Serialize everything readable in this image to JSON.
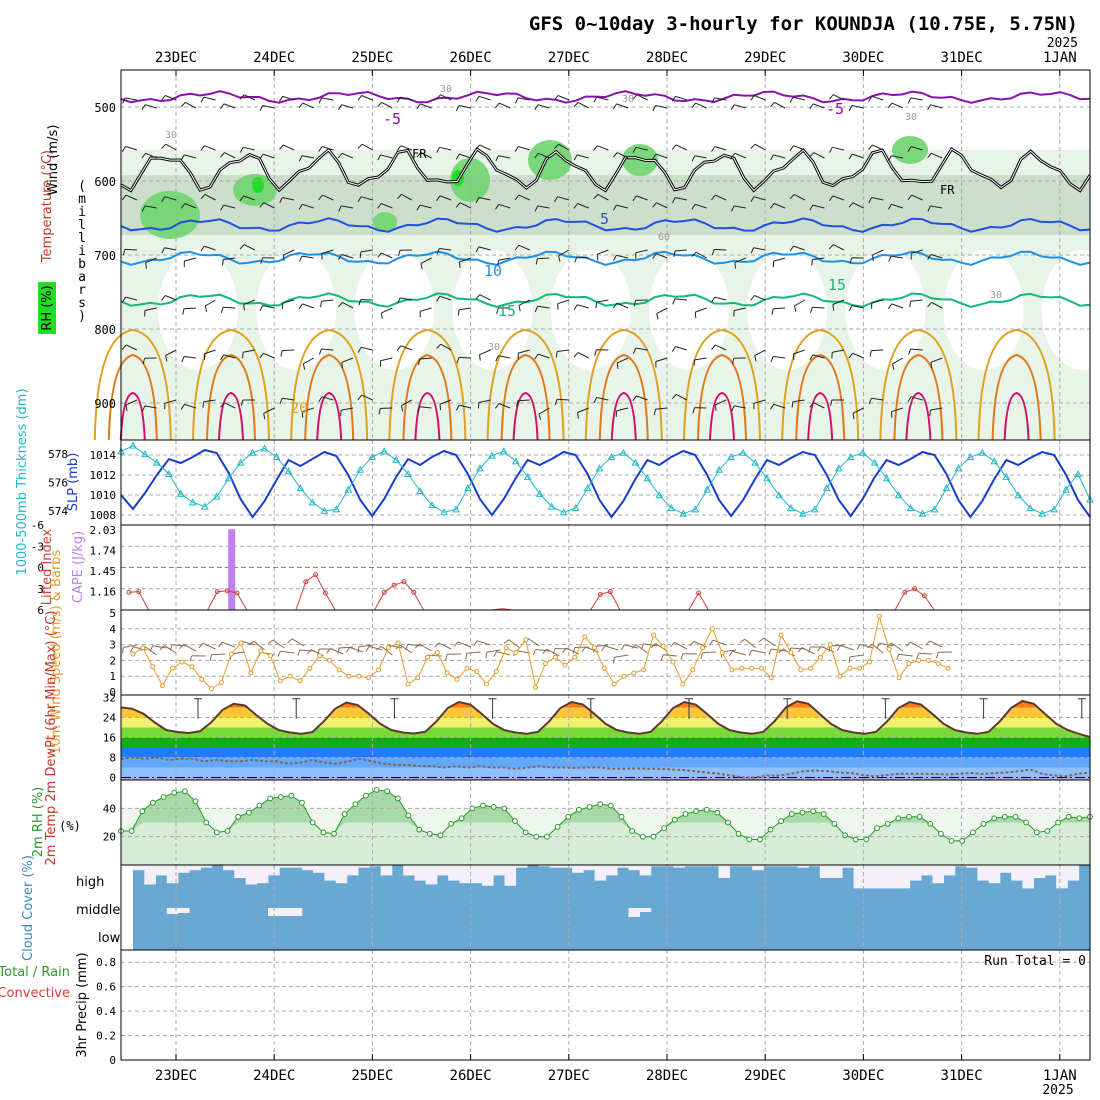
{
  "title": "GFS 0~10day 3-hourly for KOUNDJA (10.75E, 5.75N)",
  "year_label": "2025",
  "colors": {
    "grid": "#aaaaaa",
    "rh_light": "#e8f4e8",
    "rh_mid": "#c9dcc9",
    "rh_green": "#6fd46f",
    "rh_bright": "#22dd22",
    "t_minus5": "#8a10b0",
    "t_5": "#2050e0",
    "t_10": "#1e90e8",
    "t_15": "#10b87a",
    "t_20": "#e0a020",
    "t_25": "#e07818",
    "t_30": "#d0106e",
    "slp": "#1a3ccc",
    "thickness": "#22b8c8",
    "lifted": "#d04040",
    "cape": "#c080f0",
    "wind10": "#e89a2a",
    "barb": "#8a6a4a",
    "dewpt": "#7a6a5a",
    "rh2m": "#2a9a2a",
    "cloud": "#6aa8d4",
    "precip_total": "#2a9a2a",
    "precip_conv": "#e03a3a"
  },
  "chart_data": [
    {
      "id": "upper-air",
      "type": "heatmap",
      "x_ticks": [
        "23DEC",
        "24DEC",
        "25DEC",
        "26DEC",
        "27DEC",
        "28DEC",
        "29DEC",
        "30DEC",
        "31DEC",
        "1JAN"
      ],
      "ylabel": "(millibars)",
      "ylabel_chars": [
        "(",
        "m",
        "i",
        "l",
        "l",
        "i",
        "b",
        "a",
        "r",
        "s",
        ")"
      ],
      "y_ticks": [
        "500",
        "600",
        "700",
        "800",
        "900"
      ],
      "ylim": [
        450,
        950
      ],
      "side_labels": {
        "wind": "Wind (m/s)",
        "temperature": "Temperature (°C)",
        "rh": "RH (%)"
      },
      "contour_labels": {
        "minus5": "-5",
        "fr": "FR",
        "five": "5",
        "ten": "10",
        "fifteen": "15",
        "twenty": "20",
        "thirty": "30",
        "sixty": "60"
      }
    },
    {
      "id": "slp-thickness",
      "type": "line",
      "ylabel_left": "1000-500mb Thickness (dm)",
      "ylabel_right": "SLP (mb)",
      "y_ticks_left": [
        "578",
        "576",
        "574"
      ],
      "y_ticks_right": [
        "1014",
        "1012",
        "1010",
        "1008"
      ],
      "ylim_slp": [
        1007,
        1015.5
      ],
      "ylim_thickness": [
        573,
        579
      ],
      "series": [
        {
          "name": "SLP (mb)",
          "values": [
            1010,
            1008.6,
            1010.2,
            1012,
            1013.6,
            1013.2,
            1013.8,
            1014.5,
            1014.2,
            1012.2,
            1009.6,
            1007.8,
            1009.4,
            1011.5,
            1013.5,
            1012.9,
            1013.6,
            1014.3,
            1013.9,
            1012.0,
            1009.5,
            1007.9,
            1009.6,
            1011.8,
            1013.6,
            1013.0,
            1013.8,
            1014.4,
            1014.0,
            1012.1,
            1009.6,
            1008.0,
            1009.6,
            1011.7,
            1013.5,
            1013.0,
            1013.6,
            1014.3,
            1014.0,
            1012.1,
            1009.5,
            1007.8,
            1009.4,
            1011.6,
            1013.5,
            1013.0,
            1013.8,
            1014.4,
            1014.0,
            1012.0,
            1009.5,
            1007.9,
            1009.5,
            1011.6,
            1013.5,
            1013.0,
            1013.7,
            1014.3,
            1014.0,
            1012.0,
            1009.5,
            1007.9,
            1009.6,
            1011.8,
            1013.5,
            1013.0,
            1013.6,
            1014.3,
            1014.0,
            1012.1,
            1009.5,
            1007.8,
            1009.4,
            1011.6,
            1013.5,
            1013.0,
            1013.7,
            1014.3,
            1014.0,
            1012.0,
            1009.5,
            1007.8
          ]
        },
        {
          "name": "1000-500mb Thickness (dm)",
          "values": [
            578.2,
            578.6,
            578.0,
            577.4,
            576.6,
            575.2,
            574.6,
            574.3,
            575.0,
            576.3,
            577.4,
            578.1,
            578.4,
            577.8,
            576.8,
            575.6,
            574.6,
            574.0,
            574.1,
            575.5,
            576.9,
            577.8,
            578.2,
            577.6,
            576.6,
            575.4,
            574.4,
            573.9,
            574.1,
            575.6,
            577.0,
            577.9,
            578.2,
            577.5,
            576.4,
            575.2,
            574.3,
            573.9,
            574.2,
            575.6,
            577.0,
            577.8,
            578.1,
            577.4,
            576.3,
            575.1,
            574.2,
            573.8,
            574.1,
            575.5,
            576.9,
            577.8,
            578.1,
            577.4,
            576.3,
            575.1,
            574.2,
            573.8,
            574.1,
            575.6,
            577.0,
            577.8,
            578.1,
            577.4,
            576.3,
            575.1,
            574.2,
            573.8,
            574.1,
            575.6,
            577.0,
            577.8,
            578.1,
            577.5,
            576.4,
            575.1,
            574.2,
            573.8,
            574.1,
            575.5,
            576.6,
            574.8
          ]
        }
      ]
    },
    {
      "id": "lifted-cape",
      "type": "line",
      "ylabel_left": "Lifted Index",
      "ylabel_right": "CAPE (J/kg)",
      "y_ticks_left": [
        "-6",
        "-3",
        "0",
        "3",
        "6"
      ],
      "y_ticks_right": [
        "2.03",
        "1.74",
        "1.45",
        "1.16"
      ],
      "ylim_lifted": [
        6,
        -6
      ],
      "series": [
        {
          "name": "Lifted Index",
          "points": [
            [
              0,
              3.5
            ],
            [
              1,
              3.4
            ],
            [
              2,
              6.5
            ],
            [
              8,
              6.5
            ],
            [
              9,
              3.4
            ],
            [
              10,
              3.3
            ],
            [
              11,
              3.6
            ],
            [
              12,
              6.5
            ],
            [
              17,
              6.5
            ],
            [
              18,
              2.0
            ],
            [
              19,
              1.0
            ],
            [
              20,
              3.6
            ],
            [
              21,
              6.5
            ],
            [
              25,
              6.5
            ],
            [
              26,
              3.5
            ],
            [
              27,
              2.5
            ],
            [
              28,
              2.0
            ],
            [
              29,
              3.5
            ],
            [
              30,
              6.5
            ],
            [
              37,
              6.5
            ],
            [
              38,
              5.8
            ],
            [
              39,
              6.5
            ],
            [
              47,
              6.5
            ],
            [
              48,
              3.8
            ],
            [
              49,
              3.4
            ],
            [
              50,
              6.5
            ],
            [
              57,
              6.5
            ],
            [
              58,
              3.6
            ],
            [
              59,
              6.0
            ],
            [
              66,
              6.5
            ],
            [
              67,
              6.0
            ],
            [
              78,
              6.5
            ],
            [
              79,
              3.5
            ],
            [
              80,
              3.0
            ],
            [
              81,
              4.0
            ],
            [
              82,
              6.5
            ]
          ]
        },
        {
          "name": "CAPE (J/kg)",
          "bars": [
            [
              10,
              2.03
            ]
          ]
        }
      ]
    },
    {
      "id": "wind10m",
      "type": "line",
      "ylabel": "10m Wind Speed (m/s) & Barbs",
      "y_ticks": [
        "5",
        "4",
        "3",
        "2",
        "1",
        "0"
      ],
      "ylim": [
        0,
        5
      ],
      "series": [
        {
          "name": "10m Wind Speed",
          "values": [
            2.4,
            2.8,
            1.6,
            0.4,
            1.5,
            1.9,
            1.6,
            0.8,
            0.2,
            0.6,
            2.4,
            3.1,
            1.2,
            2.6,
            2.3,
            0.7,
            1.0,
            0.7,
            1.5,
            2.3,
            2.0,
            1.4,
            1.0,
            1.0,
            0.9,
            1.4,
            2.8,
            3.1,
            0.5,
            0.9,
            2.2,
            2.5,
            1.2,
            0.8,
            1.5,
            1.3,
            0.5,
            1.3,
            2.8,
            2.5,
            3.3,
            0.3,
            1.8,
            2.2,
            1.7,
            2.2,
            3.5,
            2.8,
            1.5,
            0.5,
            1.0,
            1.2,
            1.4,
            3.6,
            2.9,
            1.9,
            0.5,
            1.4,
            2.8,
            4.0,
            2.5,
            1.4,
            1.5,
            1.5,
            1.5,
            0.9,
            3.6,
            2.5,
            1.4,
            1.5,
            2.2,
            3.0,
            1.0,
            1.5,
            1.5,
            1.9,
            4.8,
            2.7,
            0.9,
            1.8,
            2.0,
            2.0,
            1.8,
            1.5
          ]
        }
      ]
    },
    {
      "id": "temp2m",
      "type": "area",
      "ylabel": "2m Temp 2m DewPt (6hr Min/Max) (°C)",
      "y_ticks": [
        "32",
        "24",
        "16",
        "8",
        "0"
      ],
      "ylim": [
        -1,
        33
      ],
      "series": [
        {
          "name": "2m Temp",
          "values": [
            28.0,
            27.5,
            25.5,
            22.0,
            19.0,
            18.2,
            17.8,
            18.5,
            22.0,
            27.0,
            29.5,
            28.8,
            25.0,
            21.5,
            19.0,
            18.0,
            17.5,
            18.2,
            22.5,
            27.5,
            30.0,
            29.0,
            25.5,
            21.5,
            19.0,
            18.0,
            17.6,
            18.3,
            22.5,
            27.8,
            30.2,
            29.2,
            25.5,
            21.5,
            19.0,
            18.0,
            17.5,
            18.3,
            22.5,
            27.8,
            30.2,
            29.2,
            25.5,
            21.5,
            19.0,
            18.0,
            17.5,
            18.3,
            22.5,
            27.8,
            30.2,
            29.2,
            25.5,
            21.5,
            19.0,
            18.0,
            17.5,
            18.3,
            22.5,
            28.0,
            30.5,
            29.5,
            25.5,
            21.5,
            19.0,
            18.0,
            17.5,
            18.3,
            22.5,
            27.8,
            30.2,
            29.2,
            25.5,
            21.5,
            19.0,
            18.0,
            17.5,
            18.3,
            22.5,
            27.8,
            30.6,
            29.5,
            25.5,
            21.5,
            19.0,
            17.5,
            16.2
          ]
        },
        {
          "name": "2m DewPt",
          "values": [
            7.5,
            8.0,
            7.5,
            8.0,
            7.0,
            7.5,
            7.5,
            6.5,
            7.0,
            6.5,
            6.5,
            7.0,
            6.5,
            6.5,
            5.5,
            6.0,
            7.0,
            6.0,
            5.5,
            6.5,
            7.5,
            6.5,
            5.5,
            5.0,
            5.0,
            4.5,
            4.5,
            4.0,
            4.5,
            4.0,
            4.5,
            4.0,
            4.0,
            3.5,
            4.0,
            4.5,
            4.0,
            4.0,
            3.8,
            4.0,
            4.0,
            3.5,
            3.5,
            3.6,
            3.5,
            3.5,
            3.2,
            3.0,
            2.5,
            2.0,
            1.5,
            0.8,
            0.0,
            0.0,
            0.8,
            0.8,
            1.5,
            2.5,
            2.8,
            2.6,
            2.0,
            1.8,
            1.0,
            0.5,
            1.0,
            1.5,
            1.5,
            1.5,
            1.4,
            1.2,
            1.5,
            1.8,
            1.4,
            1.8,
            2.0,
            2.5,
            3.2,
            1.5,
            0.8,
            0.5,
            1.5,
            2.0
          ]
        }
      ]
    },
    {
      "id": "rh2m",
      "type": "area",
      "ylabel": "2m RH (%)",
      "y_ticks": [
        "40",
        "20"
      ],
      "ylim": [
        0,
        60
      ],
      "series": [
        {
          "name": "2m RH",
          "values": [
            24,
            24,
            38,
            44,
            48,
            51,
            52,
            45,
            30,
            23,
            24,
            34,
            37,
            42,
            47,
            48,
            49,
            44,
            30,
            23,
            22,
            36,
            43,
            49,
            53,
            52,
            47,
            35,
            25,
            22,
            21,
            29,
            33,
            40,
            42,
            41,
            40,
            31,
            23,
            20,
            20,
            27,
            34,
            39,
            41,
            43,
            42,
            34,
            24,
            20,
            20,
            26,
            32,
            36,
            38,
            39,
            37,
            30,
            22,
            18,
            18,
            25,
            31,
            36,
            37,
            38,
            36,
            29,
            21,
            18,
            18,
            26,
            29,
            33,
            34,
            34,
            29,
            22,
            17,
            17,
            23,
            29,
            33,
            34,
            34,
            30,
            23,
            24,
            30,
            34,
            33,
            34
          ]
        }
      ]
    },
    {
      "id": "cloud",
      "type": "bar",
      "ylabel": "Cloud Cover (%)",
      "levels": [
        "high",
        "middle",
        "low"
      ],
      "series": [
        {
          "name": "high",
          "values": [
            80,
            25,
            60,
            30,
            70,
            80,
            90,
            100,
            80,
            50,
            25,
            30,
            60,
            90,
            90,
            80,
            70,
            40,
            30,
            60,
            90,
            95,
            60,
            100,
            60,
            40,
            25,
            60,
            40,
            30,
            30,
            20,
            60,
            20,
            90,
            100,
            95,
            90,
            90,
            70,
            80,
            40,
            60,
            90,
            80,
            60,
            95,
            95,
            90,
            95,
            95,
            95,
            50,
            95,
            95,
            80,
            95,
            95,
            95,
            90,
            95,
            50,
            50,
            90,
            10,
            10,
            10,
            10,
            10,
            40,
            60,
            30,
            60,
            95,
            90,
            40,
            30,
            70,
            40,
            10,
            50,
            60,
            10,
            40,
            100
          ]
        },
        {
          "name": "middle",
          "values": [
            0,
            0,
            0,
            30,
            25,
            0,
            0,
            0,
            0,
            0,
            0,
            0,
            40,
            40,
            40,
            0,
            0,
            0,
            0,
            0,
            0,
            0,
            0,
            0,
            0,
            0,
            0,
            0,
            0,
            0,
            0,
            0,
            0,
            0,
            0,
            0,
            0,
            0,
            0,
            0,
            0,
            0,
            0,
            0,
            45,
            20,
            0,
            0,
            0,
            0,
            0,
            0,
            0,
            0,
            0,
            0,
            0,
            0,
            0,
            0,
            0,
            0,
            0,
            0,
            0,
            0,
            0,
            0,
            0,
            0,
            0,
            0,
            0,
            0,
            0,
            0,
            0,
            0,
            0,
            0,
            0,
            0,
            0,
            0,
            0
          ]
        }
      ]
    },
    {
      "id": "precip",
      "type": "bar",
      "ylabel_left_a": "Total / Rain",
      "ylabel_left_b": "Convective",
      "ylabel": "3hr Precip (mm)",
      "y_ticks": [
        "0.8",
        "0.6",
        "0.4",
        "0.2",
        "0"
      ],
      "ylim": [
        0,
        0.9
      ],
      "run_total_label": "Run Total = 0",
      "x_ticks": [
        "23DEC",
        "24DEC",
        "25DEC",
        "26DEC",
        "27DEC",
        "28DEC",
        "29DEC",
        "30DEC",
        "31DEC",
        "1JAN"
      ],
      "bottom_year": "2025",
      "series": [
        {
          "name": "Total / Rain",
          "values": []
        },
        {
          "name": "Convective",
          "values": []
        }
      ]
    }
  ]
}
